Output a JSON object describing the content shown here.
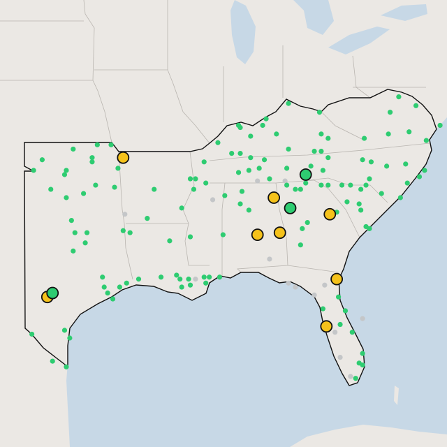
{
  "markers": [
    {
      "color": "#c4c6c8",
      "outlined": false,
      "points": [
        [
          -86.3,
          35.0
        ],
        [
          -88.9,
          34.1
        ],
        [
          -94.0,
          33.4
        ],
        [
          -85.6,
          31.2
        ],
        [
          -84.5,
          30.0
        ],
        [
          -84.1,
          29.8
        ],
        [
          -82.4,
          29.9
        ],
        [
          -83.0,
          29.4
        ],
        [
          -80.2,
          28.2
        ],
        [
          -80.9,
          25.2
        ],
        [
          -81.5,
          26.2
        ],
        [
          -81.8,
          27.5
        ],
        [
          -84.7,
          35.0
        ],
        [
          -89.9,
          30.2
        ]
      ]
    },
    {
      "color": "#2ecc71",
      "outlined": false,
      "points": [
        [
          -98.8,
          36.0
        ],
        [
          -97.0,
          36.5
        ],
        [
          -95.6,
          36.7
        ],
        [
          -94.8,
          36.7
        ],
        [
          -95.9,
          35.9
        ],
        [
          -95.9,
          36.1
        ],
        [
          -97.4,
          35.5
        ],
        [
          -97.5,
          35.3
        ],
        [
          -99.3,
          35.5
        ],
        [
          -98.3,
          34.6
        ],
        [
          -97.4,
          34.2
        ],
        [
          -95.7,
          34.8
        ],
        [
          -94.4,
          35.6
        ],
        [
          -94.6,
          34.7
        ],
        [
          -96.4,
          34.4
        ],
        [
          -97.1,
          33.1
        ],
        [
          -96.2,
          32.5
        ],
        [
          -96.9,
          32.5
        ],
        [
          -96.3,
          32.0
        ],
        [
          -97.0,
          31.6
        ],
        [
          -94.1,
          32.6
        ],
        [
          -93.7,
          32.5
        ],
        [
          -92.7,
          33.2
        ],
        [
          -92.3,
          34.6
        ],
        [
          -95.3,
          30.3
        ],
        [
          -93.9,
          30.0
        ],
        [
          -94.3,
          29.8
        ],
        [
          -95.2,
          29.8
        ],
        [
          -95.0,
          29.5
        ],
        [
          -94.7,
          29.2
        ],
        [
          -97.5,
          27.6
        ],
        [
          -97.2,
          27.2
        ],
        [
          -99.4,
          27.4
        ],
        [
          -98.2,
          26.0
        ],
        [
          -97.4,
          25.7
        ],
        [
          -90.7,
          33.7
        ],
        [
          -90.2,
          35.1
        ],
        [
          -89.9,
          35.1
        ],
        [
          -90.0,
          34.6
        ],
        [
          -89.4,
          35.9
        ],
        [
          -89.3,
          34.9
        ],
        [
          -90.2,
          32.3
        ],
        [
          -91.4,
          32.1
        ],
        [
          -88.3,
          32.4
        ],
        [
          -91.9,
          30.3
        ],
        [
          -91.0,
          30.4
        ],
        [
          -90.8,
          30.2
        ],
        [
          -90.3,
          30.2
        ],
        [
          -90.7,
          29.8
        ],
        [
          -90.2,
          29.9
        ],
        [
          -89.4,
          30.3
        ],
        [
          -89.1,
          30.3
        ],
        [
          -88.5,
          30.3
        ],
        [
          -89.3,
          30.0
        ],
        [
          -93.2,
          30.2
        ],
        [
          -87.4,
          37.6
        ],
        [
          -87.3,
          37.5
        ],
        [
          -86.0,
          37.6
        ],
        [
          -85.8,
          37.9
        ],
        [
          -84.5,
          38.6
        ],
        [
          -82.7,
          38.2
        ],
        [
          -85.2,
          37.2
        ],
        [
          -86.7,
          37.1
        ],
        [
          -88.6,
          36.8
        ],
        [
          -87.8,
          36.3
        ],
        [
          -87.3,
          36.3
        ],
        [
          -86.7,
          36.1
        ],
        [
          -86.8,
          35.5
        ],
        [
          -87.4,
          35.4
        ],
        [
          -86.2,
          35.6
        ],
        [
          -85.6,
          35.1
        ],
        [
          -84.6,
          35.6
        ],
        [
          -85.9,
          36.0
        ],
        [
          -84.5,
          36.5
        ],
        [
          -83.0,
          36.4
        ],
        [
          -82.6,
          36.4
        ],
        [
          -82.2,
          36.1
        ],
        [
          -82.6,
          37.2
        ],
        [
          -82.2,
          37.0
        ],
        [
          -82.5,
          35.5
        ],
        [
          -82.2,
          34.8
        ],
        [
          -82.6,
          34.8
        ],
        [
          -78.6,
          38.2
        ],
        [
          -78.1,
          38.9
        ],
        [
          -77.1,
          38.5
        ],
        [
          -77.5,
          37.3
        ],
        [
          -76.5,
          36.9
        ],
        [
          -75.7,
          37.6
        ],
        [
          -80.1,
          37.0
        ],
        [
          -78.7,
          37.2
        ],
        [
          -80.2,
          36.0
        ],
        [
          -79.7,
          35.9
        ],
        [
          -78.8,
          35.7
        ],
        [
          -77.7,
          35.8
        ],
        [
          -76.6,
          35.5
        ],
        [
          -76.9,
          35.2
        ],
        [
          -77.6,
          34.9
        ],
        [
          -79.8,
          35.1
        ],
        [
          -80.3,
          34.6
        ],
        [
          -80.9,
          34.8
        ],
        [
          -80.0,
          34.8
        ],
        [
          -81.4,
          34.8
        ],
        [
          -81.1,
          34.0
        ],
        [
          -81.7,
          33.5
        ],
        [
          -80.4,
          33.9
        ],
        [
          -80.3,
          33.6
        ],
        [
          -80.0,
          32.8
        ],
        [
          -79.8,
          32.7
        ],
        [
          -79.1,
          34.4
        ],
        [
          -78.0,
          34.2
        ],
        [
          -83.5,
          34.9
        ],
        [
          -83.8,
          34.6
        ],
        [
          -84.1,
          34.6
        ],
        [
          -84.6,
          34.8
        ],
        [
          -83.2,
          35.7
        ],
        [
          -83.7,
          32.7
        ],
        [
          -83.8,
          31.9
        ],
        [
          -86.1,
          32.4
        ],
        [
          -87.2,
          34.5
        ],
        [
          -87.3,
          33.9
        ],
        [
          -86.8,
          33.6
        ],
        [
          -88.2,
          34.3
        ],
        [
          -83.4,
          33.0
        ],
        [
          -81.5,
          27.9
        ],
        [
          -80.8,
          27.5
        ],
        [
          -80.2,
          26.4
        ],
        [
          -80.4,
          25.9
        ],
        [
          -80.2,
          25.8
        ],
        [
          -80.6,
          25.1
        ],
        [
          -81.2,
          28.6
        ],
        [
          -81.6,
          29.3
        ],
        [
          -82.5,
          28.7
        ]
      ]
    },
    {
      "color": "#f5c21b",
      "outlined": true,
      "points": [
        [
          -94.1,
          36.1
        ],
        [
          -85.35,
          34.2
        ],
        [
          -82.1,
          33.4
        ],
        [
          -86.3,
          32.4
        ],
        [
          -85.0,
          32.5
        ],
        [
          -81.7,
          30.2
        ],
        [
          -82.3,
          27.8
        ],
        [
          -98.5,
          29.3
        ]
      ]
    },
    {
      "color": "#2ecc71",
      "outlined": true,
      "points": [
        [
          -83.5,
          35.3
        ],
        [
          -84.4,
          33.7
        ],
        [
          -98.2,
          29.5
        ]
      ]
    }
  ]
}
